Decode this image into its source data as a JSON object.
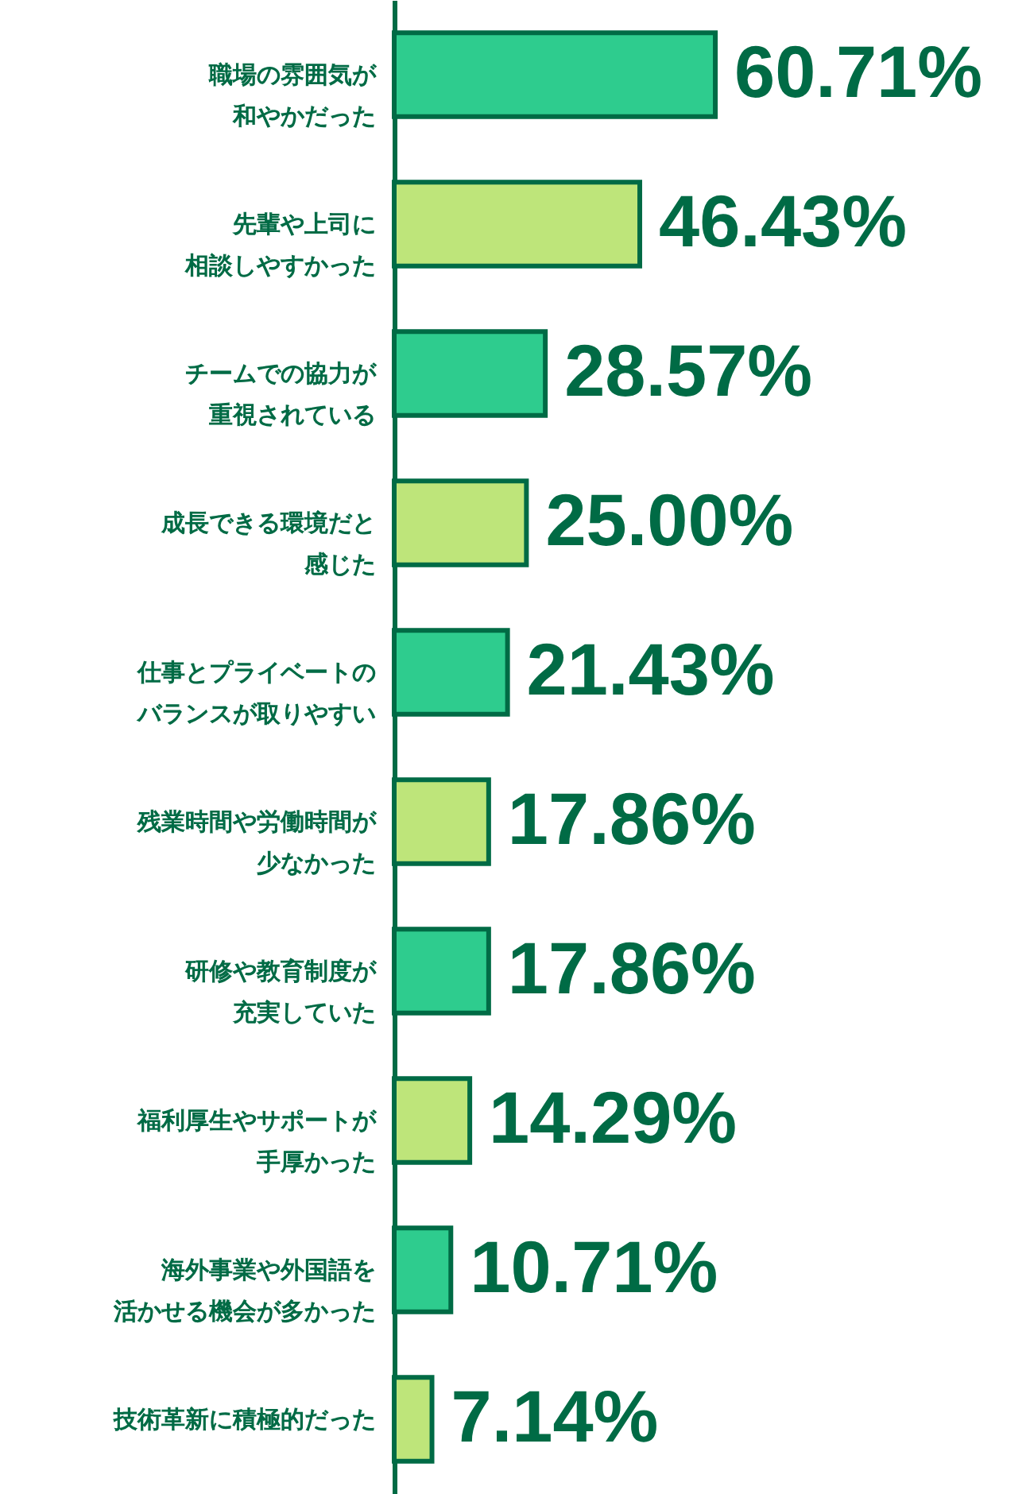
{
  "chart_data": {
    "type": "bar",
    "orientation": "horizontal",
    "categories": [
      "職場の雰囲気が和やかだった",
      "先輩や上司に相談しやすかった",
      "チームでの協力が重視されている",
      "成長できる環境だと感じた",
      "仕事とプライベートのバランスが取りやすい",
      "残業時間や労働時間が少なかった",
      "研修や教育制度が充実していた",
      "福利厚生やサポートが手厚かった",
      "海外事業や外国語を活かせる機会が多かった",
      "技術革新に積極的だった"
    ],
    "values": [
      60.71,
      46.43,
      28.57,
      25.0,
      21.43,
      17.86,
      17.86,
      14.29,
      10.71,
      7.14
    ],
    "colors": [
      "#2ecc8e",
      "#bee57a",
      "#2ecc8e",
      "#bee57a",
      "#2ecc8e",
      "#bee57a",
      "#2ecc8e",
      "#bee57a",
      "#2ecc8e",
      "#bee57a"
    ],
    "value_labels": [
      "60.71%",
      "46.43%",
      "28.57%",
      "25.00%",
      "21.43%",
      "17.86%",
      "17.86%",
      "14.29%",
      "10.71%",
      "7.14%"
    ]
  }
}
